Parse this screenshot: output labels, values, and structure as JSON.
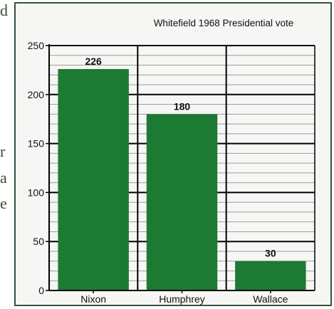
{
  "side_text": [
    "d",
    "r",
    "a",
    "e"
  ],
  "colors": {
    "bar": "#1c7a32",
    "frame": "#35553e",
    "grid": "#000000",
    "minor_grid": "#9c9c9c",
    "background": "#f6f6f4"
  },
  "chart_data": {
    "type": "bar",
    "title": "Whitefield 1968 Presidential vote",
    "categories": [
      "Nixon",
      "Humphrey",
      "Wallace"
    ],
    "values": [
      226,
      180,
      30
    ],
    "value_labels": [
      "226",
      "180",
      "30"
    ],
    "xlabel": "",
    "ylabel": "",
    "ylim": [
      0,
      250
    ],
    "yticks": [
      0,
      50,
      100,
      150,
      200,
      250
    ],
    "grid": true,
    "minor_step": 10
  }
}
